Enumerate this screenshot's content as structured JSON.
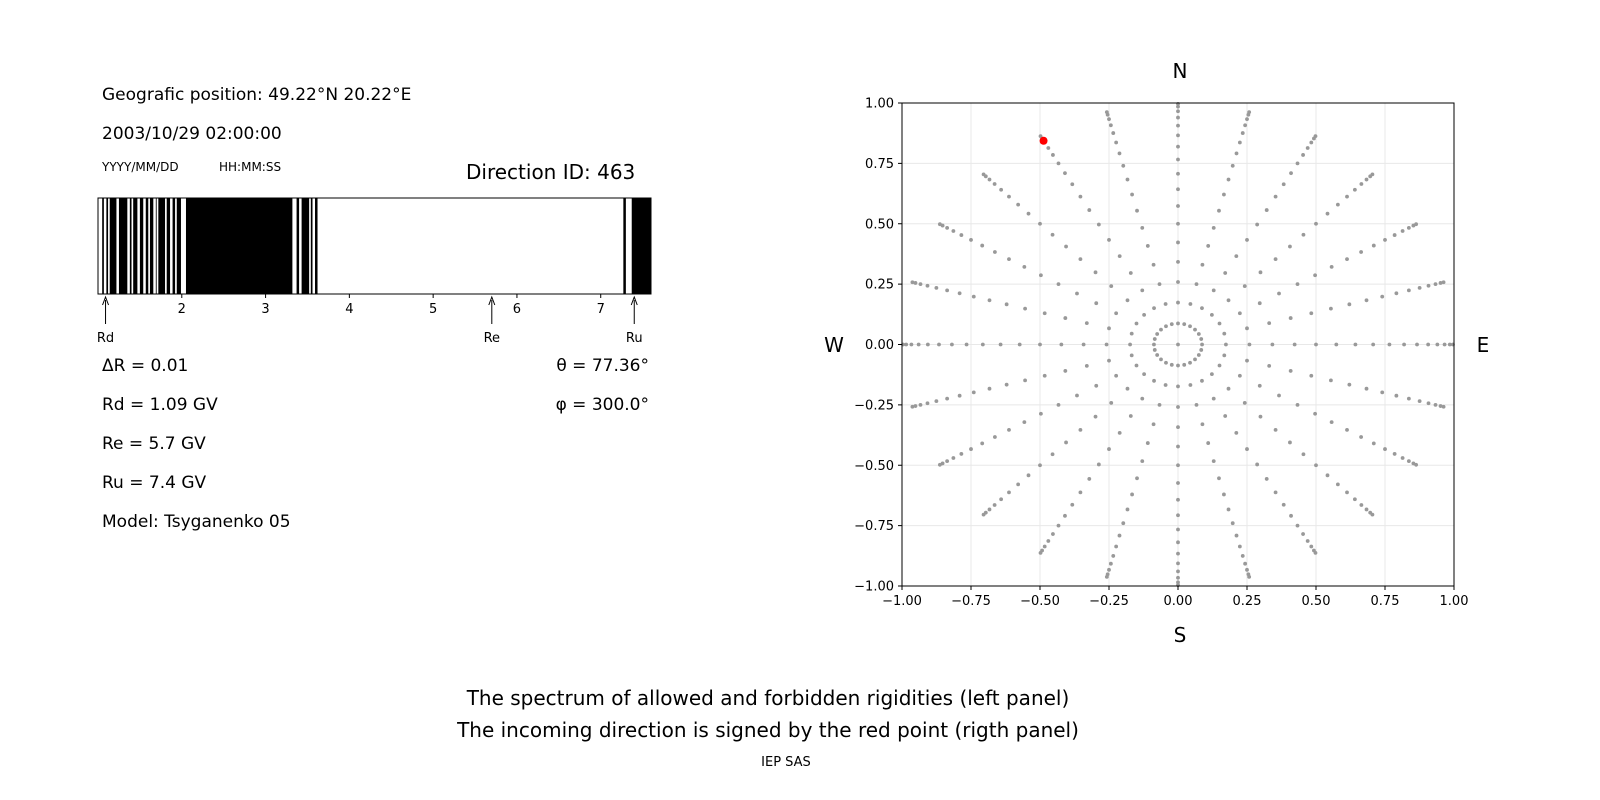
{
  "left_panel": {
    "position_text": "Geografic position: 49.22°N 20.22°E",
    "datetime": "2003/10/29 02:00:00",
    "date_format": "YYYY/MM/DD",
    "time_format": "HH:MM:SS",
    "direction_id": "Direction ID: 463",
    "delta_r": "ΔR = 0.01",
    "rd": "Rd = 1.09 GV",
    "re": "Re = 5.7 GV",
    "ru": "Ru = 7.4 GV",
    "model": "Model: Tsyganenko 05",
    "theta": "θ = 77.36°",
    "phi": "φ = 300.0°",
    "markers": [
      {
        "label": "Rd",
        "value": 1.09
      },
      {
        "label": "Re",
        "value": 5.7
      },
      {
        "label": "Ru",
        "value": 7.4
      }
    ]
  },
  "right_panel": {
    "north": "N",
    "south": "S",
    "west": "W",
    "east": "E"
  },
  "caption": {
    "line1": "The spectrum of allowed and forbidden rigidities (left panel)",
    "line2": "The incoming direction is signed by the red point (rigth panel)",
    "credit": "IEP SAS"
  },
  "chart_data": [
    {
      "type": "bar",
      "description_axis": "rigidity",
      "xlim": [
        1.0,
        7.6
      ],
      "xticks": [
        2,
        3,
        4,
        5,
        6,
        7
      ],
      "forbidden_bands": [
        [
          1.05,
          1.07
        ],
        [
          1.1,
          1.12
        ],
        [
          1.14,
          1.22
        ],
        [
          1.25,
          1.35
        ],
        [
          1.38,
          1.4
        ],
        [
          1.42,
          1.47
        ],
        [
          1.5,
          1.54
        ],
        [
          1.57,
          1.6
        ],
        [
          1.62,
          1.66
        ],
        [
          1.69,
          1.7
        ],
        [
          1.72,
          1.8
        ],
        [
          1.82,
          1.86
        ],
        [
          1.89,
          1.92
        ],
        [
          1.94,
          1.99
        ],
        [
          2.05,
          3.32
        ],
        [
          3.37,
          3.4
        ],
        [
          3.43,
          3.52
        ],
        [
          3.54,
          3.56
        ],
        [
          3.59,
          3.62
        ],
        [
          7.27,
          7.3
        ],
        [
          7.37,
          7.6
        ]
      ]
    },
    {
      "type": "scatter",
      "xlim": [
        -1.0,
        1.0
      ],
      "ylim": [
        -1.0,
        1.0
      ],
      "xticks": [
        -1.0,
        -0.75,
        -0.5,
        -0.25,
        0.0,
        0.25,
        0.5,
        0.75,
        1.0
      ],
      "yticks": [
        -1.0,
        -0.75,
        -0.5,
        -0.25,
        0.0,
        0.25,
        0.5,
        0.75,
        1.0
      ],
      "grid": true,
      "grid_series_color": "#999999",
      "highlight_color": "#ff0000",
      "highlight_point": {
        "x": -0.4871,
        "y": 0.8437
      },
      "azimuth_step_deg": 15,
      "zenith_step_deg": 5,
      "zenith_max_deg": 85,
      "center_point": true
    }
  ]
}
